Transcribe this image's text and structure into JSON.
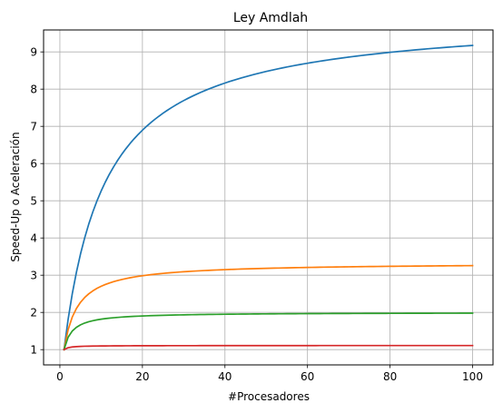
{
  "chart_data": {
    "type": "line",
    "title": "Ley Amdlah",
    "xlabel": "#Procesadores",
    "ylabel": "Speed-Up o Aceleración",
    "xlim": [
      -3.95,
      104.95
    ],
    "ylim": [
      0.59,
      9.59
    ],
    "xticks": [
      0,
      20,
      40,
      60,
      80,
      100
    ],
    "yticks": [
      1,
      2,
      3,
      4,
      5,
      6,
      7,
      8,
      9
    ],
    "grid": true,
    "legend": "none",
    "series": [
      {
        "parallel_fraction": 0.9,
        "color": "#1f77b4"
      },
      {
        "parallel_fraction": 0.7,
        "color": "#ff7f0e"
      },
      {
        "parallel_fraction": 0.5,
        "color": "#2ca02c"
      },
      {
        "parallel_fraction": 0.1,
        "color": "#d62728"
      }
    ],
    "x_range": [
      1,
      100
    ],
    "x_step": 1
  }
}
